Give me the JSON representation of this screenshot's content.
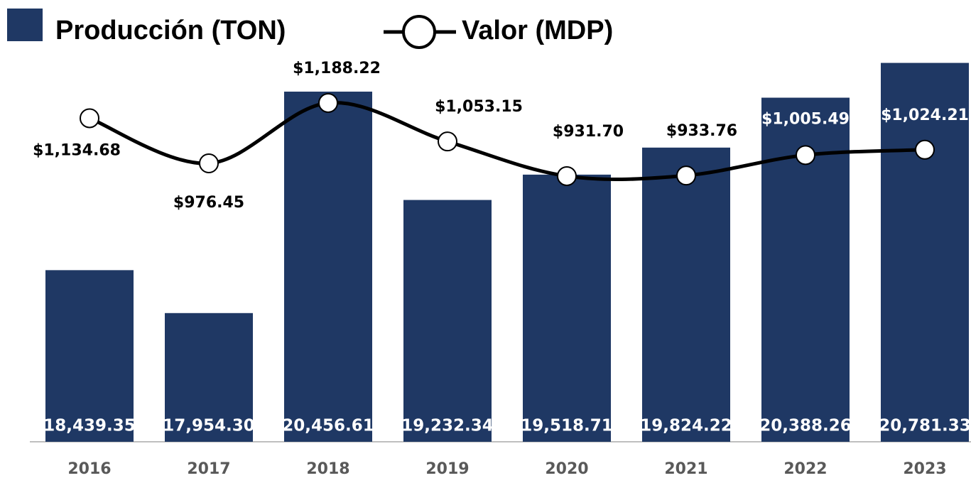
{
  "chart_data": {
    "type": "bar_line",
    "categories": [
      "2016",
      "2017",
      "2018",
      "2019",
      "2020",
      "2021",
      "2022",
      "2023"
    ],
    "series": [
      {
        "name": "Producción (TON)",
        "type": "bar",
        "color": "#1f3864",
        "values": [
          18439.35,
          17954.3,
          20456.61,
          19232.34,
          19518.71,
          19824.22,
          20388.26,
          20781.33
        ],
        "value_labels": [
          "18,439.35",
          "17,954.30",
          "20,456.61",
          "19,232.34",
          "19,518.71",
          "19,824.22",
          "20,388.26",
          "20,781.33"
        ]
      },
      {
        "name": "Valor (MDP)",
        "type": "line",
        "axis": "y2",
        "color": "#000000",
        "values": [
          1134.68,
          976.45,
          1188.22,
          1053.15,
          931.7,
          933.76,
          1005.49,
          1024.21
        ],
        "value_labels": [
          "$1,134.68",
          "$976.45",
          "$1,188.22",
          "$1,053.15",
          "$931.70",
          "$933.76",
          "$1,005.49",
          "$1,024.21"
        ]
      }
    ],
    "ylim": [
      16500,
      20850
    ],
    "y2lim": [
      0,
      1350
    ]
  }
}
